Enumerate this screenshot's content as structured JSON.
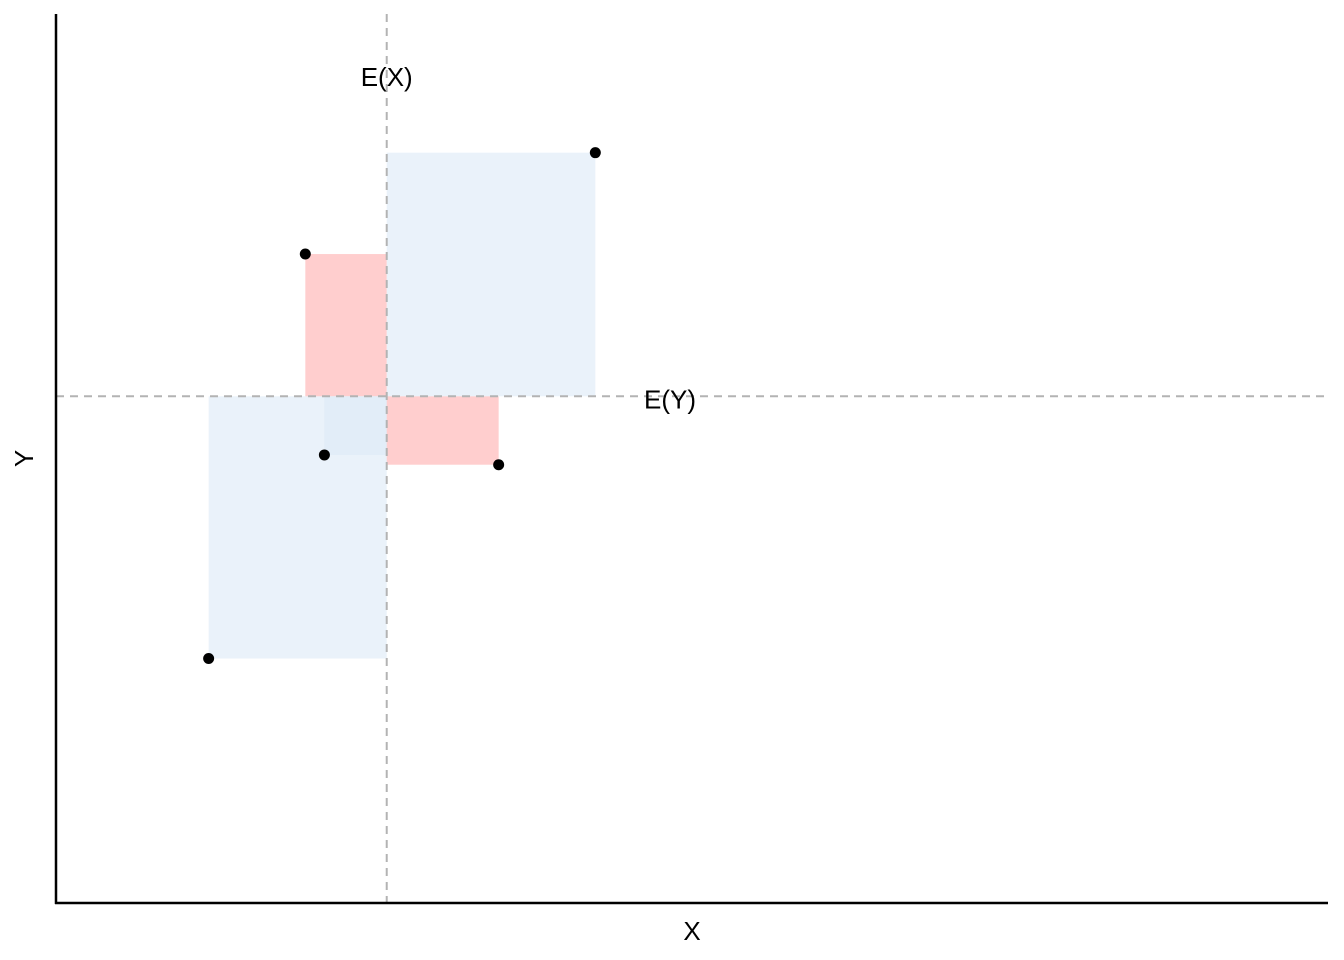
{
  "chart_data": {
    "type": "scatter",
    "title": "",
    "xlabel": "X",
    "ylabel": "Y",
    "xlim": [
      0,
      10
    ],
    "ylim": [
      0,
      10
    ],
    "grid": false,
    "ticks_shown": false,
    "mean_x": 2.6,
    "mean_y": 5.7,
    "mean_x_label": "E(X)",
    "mean_y_label": "E(Y)",
    "points": [
      {
        "x": 1.2,
        "y": 2.75
      },
      {
        "x": 1.96,
        "y": 7.3
      },
      {
        "x": 2.11,
        "y": 5.04
      },
      {
        "x": 3.48,
        "y": 4.93
      },
      {
        "x": 4.24,
        "y": 8.44
      }
    ],
    "colors": {
      "positive_product": "#dce9f6",
      "negative_product": "#ffb3b3",
      "points": "#000000",
      "reference_lines": "#b3b3b3"
    }
  }
}
